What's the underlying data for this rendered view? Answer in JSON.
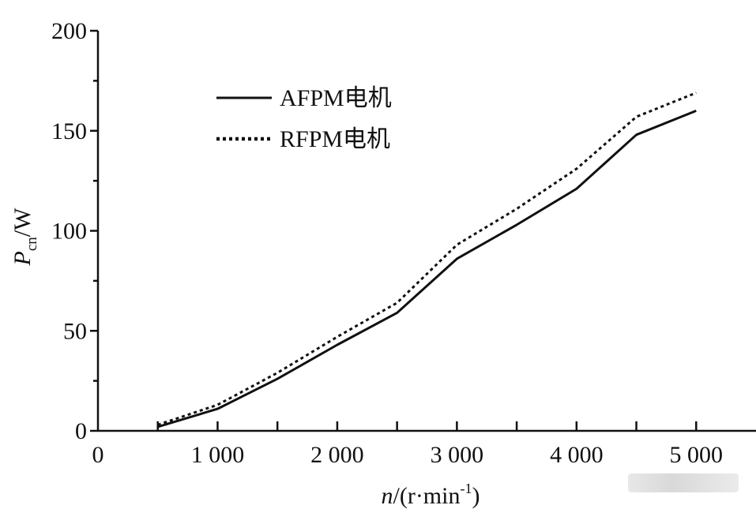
{
  "chart_data": {
    "type": "line",
    "xlim": [
      0,
      5500
    ],
    "ylim": [
      0,
      200
    ],
    "x_ticks": [
      0,
      1000,
      2000,
      3000,
      4000,
      5000
    ],
    "x_tick_labels": [
      "0",
      "1 000",
      "2 000",
      "3 000",
      "4 000",
      "5 000"
    ],
    "y_ticks": [
      0,
      50,
      100,
      150,
      200
    ],
    "y_tick_labels": [
      "0",
      "50",
      "100",
      "150",
      "200"
    ],
    "xlabel": {
      "var": "n",
      "unit": "/(r·min",
      "sup": "-1",
      "close": ")"
    },
    "ylabel": {
      "var": "P",
      "sub": "cn",
      "unit": "/W"
    },
    "legend_position": "top-left",
    "grid": false,
    "series": [
      {
        "name": "AFPM电机",
        "style": "solid",
        "x": [
          500,
          1000,
          1500,
          2000,
          2500,
          3000,
          3500,
          4000,
          4500,
          5000
        ],
        "y": [
          2,
          11,
          26,
          43,
          59,
          86,
          103,
          121,
          148,
          160
        ]
      },
      {
        "name": "RFPM电机",
        "style": "dotted",
        "x": [
          500,
          1000,
          1500,
          2000,
          2500,
          3000,
          3500,
          4000,
          4500,
          5000
        ],
        "y": [
          3,
          13,
          29,
          47,
          64,
          93,
          111,
          131,
          157,
          169
        ]
      }
    ]
  }
}
